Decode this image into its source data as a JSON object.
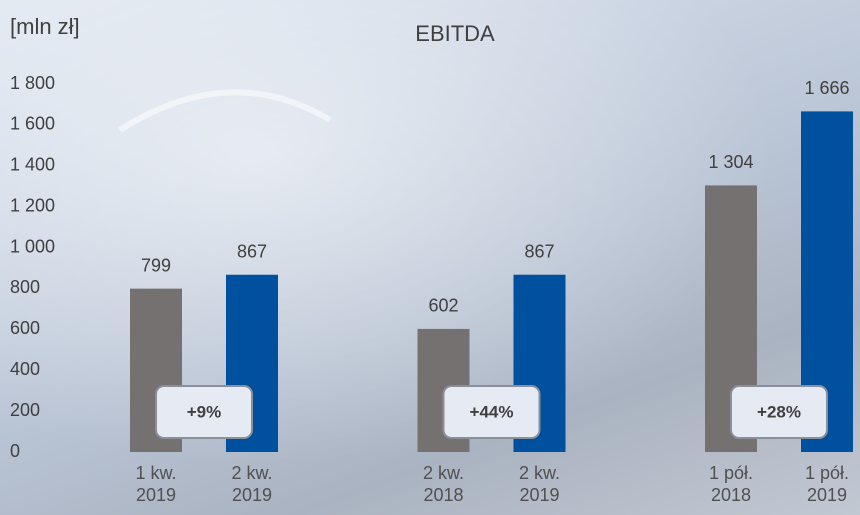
{
  "chart_data": {
    "type": "bar",
    "title": "EBITDA",
    "unit_label": "[mln zł]",
    "categories": [
      "1 kw. 2019",
      "2 kw. 2019",
      "2 kw. 2018",
      "2 kw. 2019",
      "1 pół. 2018",
      "1 pół. 2019"
    ],
    "values": [
      799,
      867,
      602,
      867,
      1304,
      1666
    ],
    "value_labels": [
      "799",
      "867",
      "602",
      "867",
      "1 304",
      "1 666"
    ],
    "colors": [
      "#767171",
      "#0050a0",
      "#767171",
      "#0050a0",
      "#767171",
      "#0050a0"
    ],
    "annotations": [
      "+9%",
      "+44%",
      "+28%"
    ],
    "ylim": [
      0,
      1800
    ],
    "yticks": [
      0,
      200,
      400,
      600,
      800,
      {
        "value": 1000,
        "label": "1 000"
      },
      {
        "value": 1200,
        "label": "1 200"
      },
      {
        "value": 1400,
        "label": "1 400"
      },
      {
        "value": 1600,
        "label": "1 600"
      },
      {
        "value": 1800,
        "label": "1 800"
      }
    ],
    "grid": false
  }
}
